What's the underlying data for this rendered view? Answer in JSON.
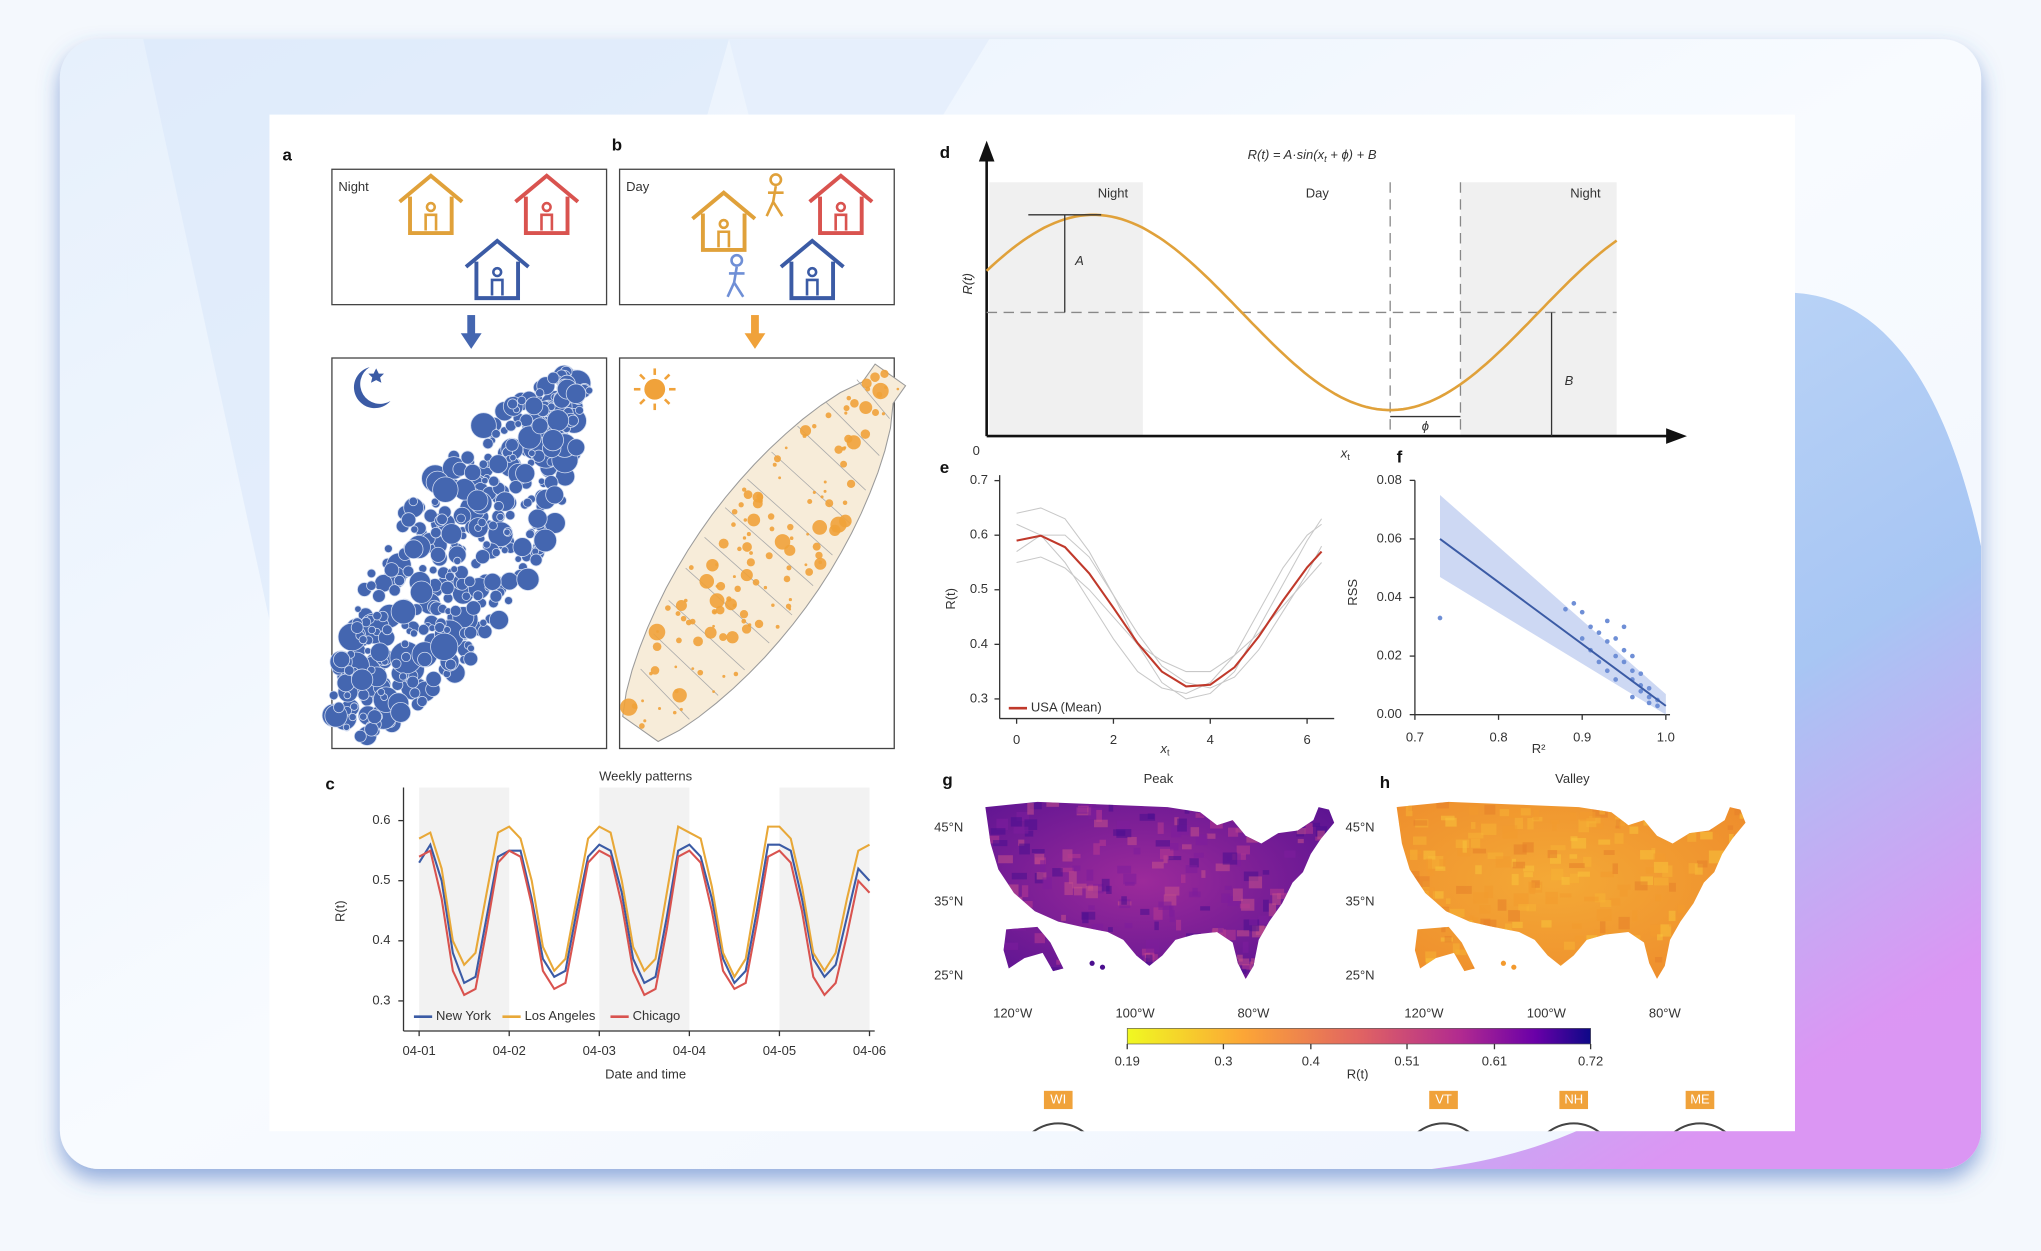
{
  "panel_labels": [
    "a",
    "b",
    "c",
    "d",
    "e",
    "f",
    "g",
    "h"
  ],
  "panel_a": {
    "label": "Night"
  },
  "panel_b": {
    "label": "Day"
  },
  "panel_d": {
    "formula": {
      "pre": "R(t) = A·sin(x",
      "sub": "t",
      "post": " + ϕ) + B"
    },
    "phases": [
      "Night",
      "Day",
      "Night"
    ],
    "ylabel": "R(t)",
    "xlabel": {
      "main": "x",
      "sub": "t"
    },
    "origin": 0,
    "amplitude": "A",
    "offset": "B",
    "phase": "ϕ"
  },
  "map_g": {
    "title": "Peak",
    "lat_labels": [
      "45°N",
      "35°N",
      "25°N"
    ],
    "lon_labels": [
      "120°W",
      "100°W",
      "80°W"
    ]
  },
  "map_h": {
    "title": "Valley",
    "lat_labels": [
      "45°N",
      "35°N",
      "25°N"
    ],
    "lon_labels": [
      "120°W",
      "100°W",
      "80°W"
    ]
  },
  "colorbar": {
    "label": "R(t)",
    "lim": [
      0.19,
      0.72
    ],
    "ticks": [
      0.19,
      0.3,
      0.4,
      0.51,
      0.61,
      0.72
    ]
  },
  "state_labels": [
    "WI",
    "VT",
    "NH",
    "ME"
  ],
  "chart_data": [
    {
      "type": "line",
      "title": "Weekly patterns",
      "xlabel": "Date and time",
      "ylabel": "R(t)",
      "categories": [
        "04-01",
        null,
        null,
        null,
        null,
        null,
        null,
        null,
        "04-02",
        null,
        null,
        null,
        null,
        null,
        null,
        null,
        "04-03",
        null,
        null,
        null,
        null,
        null,
        null,
        null,
        "04-04",
        null,
        null,
        null,
        null,
        null,
        null,
        null,
        "04-05",
        null,
        null,
        null,
        null,
        null,
        null,
        null,
        "04-06"
      ],
      "series": [
        {
          "name": "New York",
          "color": "#3b5ba5",
          "values": [
            0.53,
            0.56,
            0.5,
            0.38,
            0.33,
            0.34,
            0.44,
            0.54,
            0.55,
            0.55,
            0.47,
            0.37,
            0.34,
            0.35,
            0.45,
            0.54,
            0.56,
            0.55,
            0.48,
            0.37,
            0.33,
            0.34,
            0.44,
            0.55,
            0.56,
            0.54,
            0.47,
            0.37,
            0.33,
            0.35,
            0.45,
            0.56,
            0.56,
            0.55,
            0.47,
            0.37,
            0.34,
            0.36,
            0.44,
            0.52,
            0.5
          ]
        },
        {
          "name": "Los Angeles",
          "color": "#e8a838",
          "values": [
            0.57,
            0.58,
            0.52,
            0.4,
            0.36,
            0.38,
            0.48,
            0.58,
            0.59,
            0.57,
            0.5,
            0.39,
            0.35,
            0.37,
            0.47,
            0.57,
            0.59,
            0.58,
            0.5,
            0.39,
            0.35,
            0.37,
            0.48,
            0.59,
            0.58,
            0.57,
            0.49,
            0.38,
            0.34,
            0.37,
            0.48,
            0.59,
            0.59,
            0.57,
            0.49,
            0.38,
            0.35,
            0.38,
            0.47,
            0.55,
            0.56
          ]
        },
        {
          "name": "Chicago",
          "color": "#d9534f",
          "values": [
            0.54,
            0.55,
            0.47,
            0.35,
            0.31,
            0.32,
            0.42,
            0.53,
            0.55,
            0.54,
            0.46,
            0.35,
            0.32,
            0.33,
            0.43,
            0.53,
            0.55,
            0.54,
            0.46,
            0.35,
            0.31,
            0.32,
            0.42,
            0.54,
            0.55,
            0.53,
            0.45,
            0.35,
            0.32,
            0.33,
            0.43,
            0.54,
            0.55,
            0.53,
            0.45,
            0.34,
            0.31,
            0.33,
            0.41,
            0.5,
            0.48
          ]
        }
      ],
      "ylim": [
        0.25,
        0.655
      ],
      "yticks": [
        0.3,
        0.4,
        0.5,
        0.6
      ],
      "legend": "lower left"
    },
    {
      "type": "line",
      "xlabel": {
        "main": "x",
        "sub": "t"
      },
      "ylabel": "R(t)",
      "x": [
        0,
        0.5,
        1,
        1.5,
        2,
        2.5,
        3,
        3.5,
        4,
        4.5,
        5,
        5.5,
        6,
        6.3
      ],
      "series": [
        {
          "color": "#c8c8c8",
          "values": [
            0.64,
            0.65,
            0.63,
            0.57,
            0.49,
            0.4,
            0.33,
            0.3,
            0.31,
            0.35,
            0.43,
            0.51,
            0.59,
            0.63
          ]
        },
        {
          "color": "#c8c8c8",
          "values": [
            0.55,
            0.56,
            0.54,
            0.5,
            0.45,
            0.4,
            0.37,
            0.35,
            0.35,
            0.38,
            0.42,
            0.47,
            0.52,
            0.55
          ]
        },
        {
          "color": "#c8c8c8",
          "values": [
            0.62,
            0.6,
            0.55,
            0.48,
            0.41,
            0.35,
            0.32,
            0.31,
            0.33,
            0.38,
            0.46,
            0.54,
            0.6,
            0.62
          ]
        },
        {
          "color": "#c8c8c8",
          "values": [
            0.57,
            0.6,
            0.6,
            0.56,
            0.49,
            0.42,
            0.36,
            0.33,
            0.32,
            0.34,
            0.39,
            0.46,
            0.53,
            0.58
          ]
        },
        {
          "name": "USA (Mean)",
          "color": "#c0392b",
          "values": [
            0.59,
            0.599,
            0.578,
            0.53,
            0.467,
            0.402,
            0.35,
            0.323,
            0.326,
            0.358,
            0.414,
            0.48,
            0.541,
            0.57
          ]
        }
      ],
      "xlim": [
        -0.35,
        6.56
      ],
      "ylim": [
        0.264,
        0.71
      ],
      "xticks": [
        0,
        2,
        4,
        6
      ],
      "yticks": [
        0.3,
        0.4,
        0.5,
        0.6,
        0.7
      ],
      "legend": "lower left"
    },
    {
      "type": "scatter",
      "xlabel": "R²",
      "ylabel": "RSS",
      "color": "#6f8fd6",
      "x": [
        0.73,
        0.88,
        0.89,
        0.9,
        0.91,
        0.92,
        0.93,
        0.93,
        0.94,
        0.94,
        0.95,
        0.95,
        0.95,
        0.96,
        0.96,
        0.96,
        0.97,
        0.97,
        0.97,
        0.98,
        0.98,
        0.98,
        0.99,
        0.99,
        0.92,
        0.9,
        0.94,
        0.96,
        0.91,
        0.93
      ],
      "values": [
        0.033,
        0.036,
        0.038,
        0.035,
        0.03,
        0.028,
        0.032,
        0.025,
        0.02,
        0.026,
        0.018,
        0.022,
        0.03,
        0.015,
        0.012,
        0.02,
        0.01,
        0.008,
        0.014,
        0.006,
        0.004,
        0.009,
        0.003,
        0.005,
        0.018,
        0.026,
        0.012,
        0.006,
        0.022,
        0.015
      ],
      "fit": {
        "color": "#3b5ba5",
        "x": [
          0.73,
          1.0
        ],
        "y": [
          0.06,
          0.003
        ]
      },
      "band": {
        "color": "#b8c8ee",
        "upper": [
          0.075,
          0.007
        ],
        "lower": [
          0.047,
          0.0
        ]
      },
      "xlim": [
        0.7,
        1.005
      ],
      "ylim": [
        0,
        0.08
      ],
      "xticks": [
        0.7,
        0.8,
        0.9,
        {
          "value": 1,
          "label": "1.0"
        }
      ],
      "yticks": [
        {
          "value": 0,
          "label": "0.00"
        },
        {
          "value": 0.02,
          "label": "0.02"
        },
        {
          "value": 0.04,
          "label": "0.04"
        },
        {
          "value": 0.06,
          "label": "0.06"
        },
        {
          "value": 0.08,
          "label": "0.08"
        }
      ]
    }
  ]
}
